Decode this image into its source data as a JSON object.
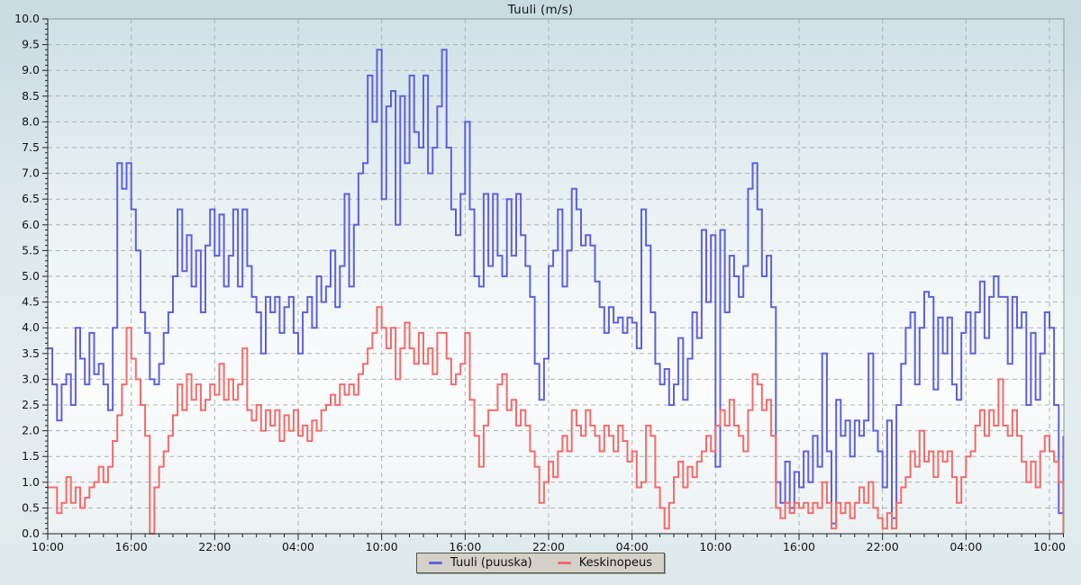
{
  "title": "Tuuli (m/s)",
  "legend": {
    "items": [
      {
        "label": "Tuuli (puuska)",
        "color": "#5f5fe0"
      },
      {
        "label": "Keskinopeus",
        "color": "#f66a6a"
      }
    ]
  },
  "colors": {
    "gust_line": "#5f5fe0",
    "avg_line": "#f66a6a",
    "grid_line": "#a9b4b4",
    "axis_dark": "#222222",
    "frame_light": "#8d9898",
    "legend_bg": "#d4d1c9",
    "plot_bg_top": "#cfe1e7",
    "plot_bg_bottom": "#ecf2f2"
  },
  "chart_data": {
    "type": "line",
    "step": true,
    "title": "Tuuli (m/s)",
    "xlabel": "",
    "ylabel": "",
    "ylim": [
      0,
      10
    ],
    "grid": true,
    "legend_position": "bottom-center",
    "y_tick_step": 0.5,
    "y_minor_tick_step": 0.1,
    "x_tick_interval_hours": 6,
    "x_minor_tick_interval_hours": 1,
    "time_span_hours": 73,
    "sample_interval_minutes": 20,
    "x_start_label": "10:00",
    "y_tick_labels": [
      "0.0",
      "0.5",
      "1.0",
      "1.5",
      "2.0",
      "2.5",
      "3.0",
      "3.5",
      "4.0",
      "4.5",
      "5.0",
      "5.5",
      "6.0",
      "6.5",
      "7.0",
      "7.5",
      "8.0",
      "8.5",
      "9.0",
      "9.5",
      "10.0"
    ],
    "x_tick_labels": [
      "10:00",
      "16:00",
      "22:00",
      "04:00",
      "10:00",
      "16:00",
      "22:00",
      "04:00",
      "10:00",
      "16:00",
      "22:00",
      "04:00",
      "10:00"
    ],
    "series": [
      {
        "name": "Tuuli (puuska)",
        "color": "#5f5fe0",
        "values": [
          3.6,
          2.9,
          2.2,
          2.9,
          3.1,
          2.5,
          4.0,
          3.4,
          2.9,
          3.9,
          3.1,
          3.3,
          2.9,
          2.4,
          4.0,
          7.2,
          6.7,
          7.2,
          6.3,
          5.5,
          4.3,
          3.9,
          3.0,
          2.9,
          3.3,
          3.9,
          4.3,
          5.0,
          6.3,
          5.1,
          5.8,
          4.8,
          5.5,
          4.3,
          5.6,
          6.3,
          5.4,
          6.2,
          4.8,
          5.4,
          6.3,
          4.8,
          6.3,
          5.2,
          4.6,
          4.3,
          3.5,
          4.6,
          4.3,
          4.6,
          3.9,
          4.4,
          4.6,
          3.9,
          3.5,
          4.3,
          4.6,
          4.0,
          5.0,
          4.5,
          4.8,
          5.5,
          4.4,
          5.2,
          6.6,
          4.8,
          6.0,
          7.0,
          7.2,
          8.9,
          8.0,
          9.4,
          6.5,
          8.3,
          8.6,
          6.0,
          8.5,
          7.2,
          8.9,
          7.8,
          7.5,
          8.9,
          7.0,
          7.5,
          8.3,
          9.4,
          7.5,
          6.3,
          5.8,
          6.6,
          8.0,
          6.3,
          5.0,
          4.8,
          6.6,
          5.2,
          6.6,
          5.4,
          5.0,
          6.5,
          5.4,
          6.6,
          5.8,
          5.2,
          4.6,
          3.3,
          2.6,
          3.4,
          5.2,
          5.5,
          6.3,
          4.8,
          5.5,
          6.7,
          6.3,
          5.6,
          5.8,
          5.6,
          4.9,
          4.4,
          3.9,
          4.4,
          4.1,
          4.2,
          3.9,
          4.2,
          4.1,
          3.6,
          6.3,
          5.6,
          4.3,
          3.3,
          2.9,
          3.2,
          2.5,
          2.9,
          3.8,
          2.6,
          3.4,
          4.3,
          3.8,
          5.9,
          4.5,
          5.8,
          1.3,
          5.9,
          4.3,
          5.4,
          5.0,
          4.6,
          5.2,
          6.7,
          7.2,
          6.3,
          5.0,
          5.4,
          4.4,
          1.0,
          0.6,
          1.4,
          0.5,
          1.2,
          0.9,
          1.6,
          1.0,
          1.9,
          1.3,
          3.5,
          1.6,
          0.2,
          2.6,
          1.9,
          2.2,
          1.5,
          2.2,
          1.9,
          2.2,
          3.5,
          2.0,
          1.6,
          0.9,
          2.2,
          0.3,
          2.5,
          3.3,
          4.0,
          4.3,
          2.9,
          4.0,
          4.7,
          4.6,
          2.8,
          4.2,
          3.5,
          4.2,
          2.9,
          2.6,
          3.9,
          4.3,
          3.5,
          4.3,
          4.9,
          3.8,
          4.6,
          5.0,
          4.6,
          4.6,
          3.3,
          4.6,
          4.0,
          4.3,
          2.5,
          3.9,
          2.6,
          3.5,
          4.3,
          4.0,
          2.5,
          0.4,
          1.9
        ]
      },
      {
        "name": "Keskinopeus",
        "color": "#f66a6a",
        "values": [
          0.9,
          0.9,
          0.4,
          0.6,
          1.1,
          0.6,
          0.9,
          0.5,
          0.7,
          0.9,
          1.0,
          1.3,
          1.0,
          1.3,
          1.8,
          2.3,
          2.9,
          4.0,
          3.4,
          3.0,
          2.5,
          1.9,
          0.0,
          0.9,
          1.3,
          1.6,
          1.9,
          2.3,
          2.9,
          2.4,
          3.1,
          2.6,
          2.9,
          2.4,
          2.6,
          2.9,
          2.7,
          3.3,
          2.6,
          3.0,
          2.6,
          2.9,
          3.6,
          2.4,
          2.2,
          2.5,
          2.0,
          2.4,
          2.1,
          2.4,
          1.8,
          2.3,
          2.0,
          2.4,
          1.9,
          2.1,
          1.8,
          2.2,
          2.0,
          2.4,
          2.5,
          2.7,
          2.5,
          2.9,
          2.7,
          2.9,
          2.7,
          3.1,
          3.3,
          3.6,
          3.9,
          4.4,
          4.0,
          3.6,
          4.0,
          3.0,
          3.6,
          4.1,
          3.6,
          3.3,
          3.9,
          3.3,
          3.6,
          3.1,
          3.9,
          3.9,
          3.4,
          2.9,
          3.1,
          3.3,
          3.9,
          2.6,
          1.9,
          1.3,
          2.1,
          2.4,
          2.4,
          2.9,
          3.1,
          2.4,
          2.6,
          2.1,
          2.4,
          2.1,
          1.6,
          1.3,
          0.6,
          1.0,
          1.4,
          1.1,
          1.6,
          1.9,
          1.6,
          2.4,
          2.1,
          1.9,
          2.4,
          2.1,
          1.9,
          1.6,
          2.1,
          1.9,
          1.6,
          2.1,
          1.8,
          1.4,
          1.6,
          0.9,
          1.0,
          2.1,
          1.9,
          0.9,
          0.5,
          0.1,
          0.6,
          1.1,
          1.4,
          0.9,
          1.3,
          1.1,
          1.4,
          1.6,
          1.9,
          1.6,
          2.1,
          2.4,
          2.1,
          2.6,
          2.1,
          1.9,
          1.6,
          2.4,
          3.1,
          2.9,
          2.4,
          2.6,
          1.9,
          0.5,
          0.3,
          0.6,
          0.4,
          0.6,
          0.5,
          0.6,
          0.4,
          0.6,
          0.5,
          1.0,
          0.6,
          0.1,
          0.6,
          0.4,
          0.6,
          0.3,
          0.6,
          0.9,
          0.6,
          1.0,
          0.5,
          0.3,
          0.1,
          0.4,
          0.1,
          0.6,
          0.9,
          1.1,
          1.6,
          1.3,
          2.0,
          1.4,
          1.6,
          1.1,
          1.6,
          1.4,
          1.6,
          1.1,
          0.6,
          1.1,
          1.5,
          1.6,
          2.1,
          2.4,
          1.9,
          2.4,
          2.1,
          3.0,
          2.1,
          1.9,
          2.4,
          1.9,
          1.4,
          1.0,
          1.4,
          0.9,
          1.6,
          1.9,
          1.6,
          1.4,
          1.0,
          0.0
        ]
      }
    ]
  }
}
